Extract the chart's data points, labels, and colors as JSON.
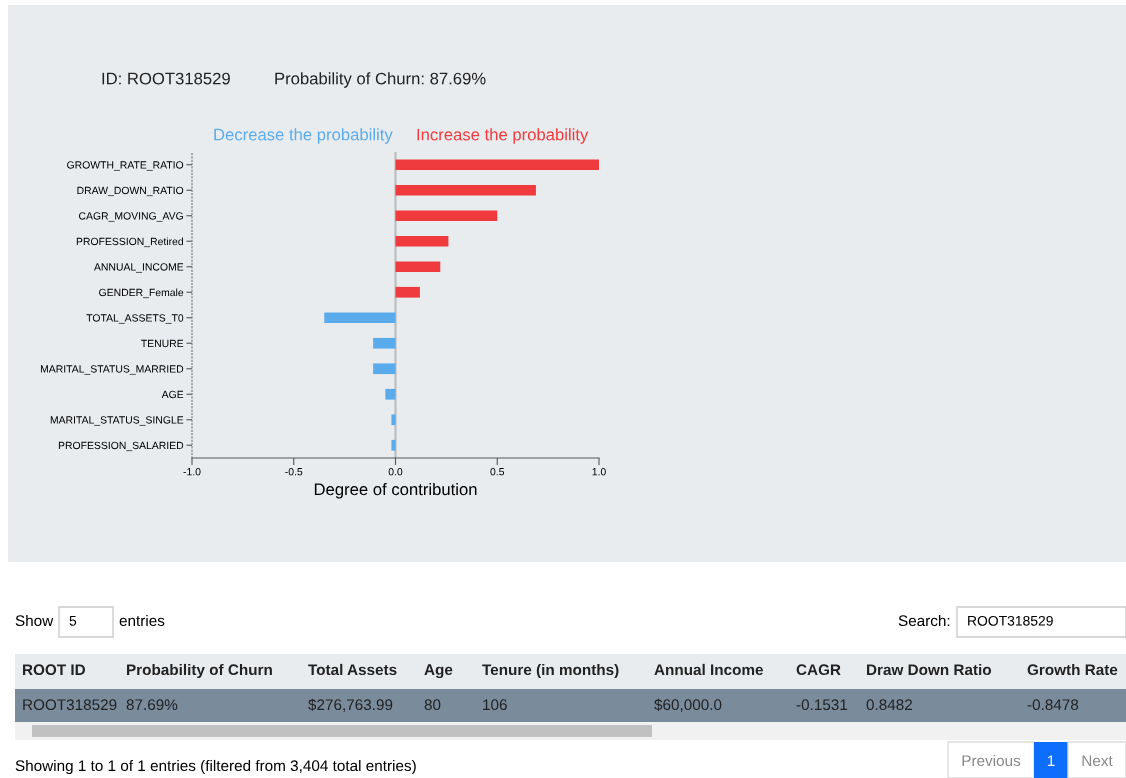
{
  "chart_data": [
    {
      "type": "bar",
      "orientation": "horizontal",
      "xlabel": "Degree of contribution",
      "annotations": [
        "ID: ROOT318529",
        "Probability of Churn: 87.69%",
        "Decrease the probability",
        "Increase the probability"
      ],
      "categories": [
        "GROWTH_RATE_RATIO",
        "DRAW_DOWN_RATIO",
        "CAGR_MOVING_AVG",
        "PROFESSION_Retired",
        "ANNUAL_INCOME",
        "GENDER_Female",
        "TOTAL_ASSETS_T0",
        "TENURE",
        "MARITAL_STATUS_MARRIED",
        "AGE",
        "MARITAL_STATUS_SINGLE",
        "PROFESSION_SALARIED"
      ],
      "values": [
        1.0,
        0.69,
        0.5,
        0.26,
        0.22,
        0.12,
        -0.35,
        -0.11,
        -0.11,
        -0.05,
        -0.02,
        -0.02
      ],
      "colors": [
        "#ef3b3d",
        "#ef3b3d",
        "#ef3b3d",
        "#ef3b3d",
        "#ef3b3d",
        "#ef3b3d",
        "#5aabeb",
        "#5aabeb",
        "#5aabeb",
        "#5aabeb",
        "#5aabeb",
        "#5aabeb"
      ],
      "xlim": [
        -1.0,
        1.0
      ],
      "xticks": [
        {
          "value": -1.0,
          "label": "-1.0"
        },
        {
          "value": -0.5,
          "label": "-0.5"
        },
        {
          "value": 0,
          "label": "0.0"
        },
        {
          "value": 0.5,
          "label": "0.5"
        },
        {
          "value": 1.0,
          "label": "1.0"
        }
      ],
      "ref_lines": [
        {
          "axis": "x",
          "value": 0,
          "color": "#bbbbbb"
        }
      ]
    },
    {
      "type": "other",
      "annotations": [
        "Show",
        "5",
        "entries",
        "Search:",
        "ROOT318529",
        "ROOT ID",
        "Probability of Churn",
        "Total Assets",
        "Age",
        "Tenure (in months)",
        "Annual Income",
        "CAGR",
        "Draw Down Ratio",
        "Growth Rate",
        "ROOT318529",
        "87.69%",
        "$276,763.99",
        "80",
        "106",
        "$60,000.0",
        "-0.1531",
        "0.8482",
        "-0.8478",
        "Showing 1 to 1 of 1 entries (filtered from 3,404 total entries)",
        "Previous",
        "1",
        "Next"
      ]
    }
  ]
}
